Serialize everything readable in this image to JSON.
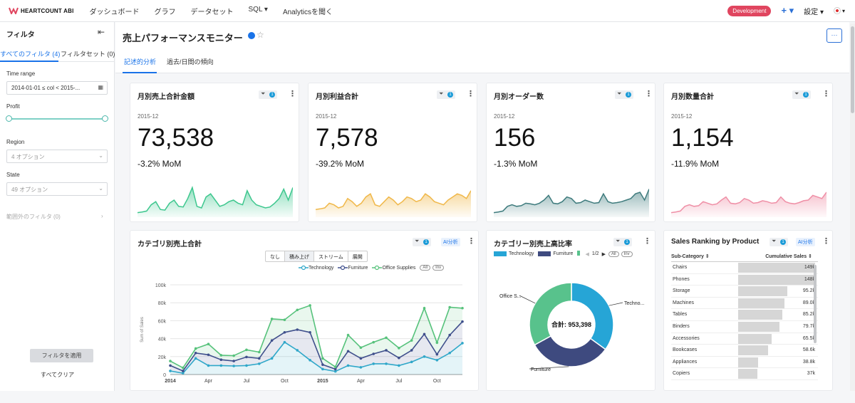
{
  "app": {
    "brand": "HEARTCOUNT ABI"
  },
  "nav": [
    {
      "label": "ダッシュボード"
    },
    {
      "label": "グラフ"
    },
    {
      "label": "データセット"
    },
    {
      "label": "SQL ▾"
    },
    {
      "label": "Analyticsを聞く"
    }
  ],
  "topright": {
    "env_badge": "Development",
    "add_label": "+ ▾",
    "settings_label": "設定 ▾",
    "flag_menu": "▾"
  },
  "sidebar": {
    "title": "フィルタ",
    "tab_all": "すべてのフィルタ (4)",
    "tab_sets": "フィルタセット (0)",
    "filters": [
      {
        "label": "Time range",
        "value": "2014-01-01 ≤ col < 2015-..."
      },
      {
        "label": "Profit",
        "value": ""
      },
      {
        "label": "Region",
        "value": "4 オプション"
      },
      {
        "label": "State",
        "value": "49 オプション"
      }
    ],
    "other_filters": "範囲外のフィルタ (0)",
    "apply": "フィルタを適用",
    "clear": "すべてクリア"
  },
  "page": {
    "title": "売上パフォーマンスモニター",
    "tabs": [
      {
        "label": "記述的分析"
      },
      {
        "label": "過去/日間の傾向"
      }
    ],
    "more": "···"
  },
  "kpis": [
    {
      "title": "月別売上合計金額",
      "date": "2015-12",
      "value": "73,538",
      "mom": "-3.2% MoM",
      "filter_count": "1",
      "color": "#3dc78e",
      "spark": [
        0.1,
        0.12,
        0.15,
        0.35,
        0.45,
        0.2,
        0.18,
        0.4,
        0.5,
        0.3,
        0.28,
        0.55,
        0.9,
        0.3,
        0.25,
        0.6,
        0.7,
        0.5,
        0.3,
        0.35,
        0.45,
        0.5,
        0.4,
        0.35,
        0.8,
        0.5,
        0.35,
        0.3,
        0.25,
        0.28,
        0.4,
        0.55,
        0.85,
        0.5,
        0.9
      ]
    },
    {
      "title": "月別利益合計",
      "date": "2015-12",
      "value": "7,578",
      "mom": "-39.2% MoM",
      "filter_count": "1",
      "color": "#f0b84a",
      "spark": [
        0.2,
        0.22,
        0.25,
        0.4,
        0.35,
        0.25,
        0.3,
        0.55,
        0.45,
        0.3,
        0.4,
        0.6,
        0.7,
        0.35,
        0.3,
        0.45,
        0.6,
        0.5,
        0.35,
        0.45,
        0.6,
        0.55,
        0.45,
        0.5,
        0.7,
        0.6,
        0.45,
        0.4,
        0.35,
        0.5,
        0.6,
        0.7,
        0.65,
        0.55,
        0.8
      ]
    },
    {
      "title": "月別オーダー数",
      "date": "2015-12",
      "value": "156",
      "mom": "-1.3% MoM",
      "filter_count": "1",
      "color": "#3e7b7d",
      "spark": [
        0.1,
        0.12,
        0.15,
        0.3,
        0.35,
        0.3,
        0.32,
        0.4,
        0.38,
        0.35,
        0.4,
        0.5,
        0.65,
        0.4,
        0.38,
        0.45,
        0.6,
        0.55,
        0.4,
        0.42,
        0.5,
        0.45,
        0.4,
        0.42,
        0.7,
        0.45,
        0.4,
        0.42,
        0.45,
        0.5,
        0.55,
        0.7,
        0.75,
        0.5,
        0.85
      ]
    },
    {
      "title": "月別数量合計",
      "date": "2015-12",
      "value": "1,154",
      "mom": "-11.9% MoM",
      "filter_count": "1",
      "color": "#ef8fa6",
      "spark": [
        0.1,
        0.12,
        0.15,
        0.3,
        0.35,
        0.3,
        0.32,
        0.45,
        0.4,
        0.35,
        0.38,
        0.5,
        0.6,
        0.4,
        0.38,
        0.42,
        0.55,
        0.5,
        0.4,
        0.42,
        0.48,
        0.45,
        0.4,
        0.42,
        0.6,
        0.45,
        0.4,
        0.38,
        0.42,
        0.48,
        0.5,
        0.65,
        0.6,
        0.55,
        0.75
      ]
    }
  ],
  "linechart": {
    "title": "カテゴリ別売上合計",
    "filter_count": "1",
    "ai": "AI分析",
    "modes": [
      {
        "label": "なし"
      },
      {
        "label": "積み上げ"
      },
      {
        "label": "ストリーム"
      },
      {
        "label": "展開"
      }
    ],
    "all_pill": "All",
    "inv_pill": "Inv"
  },
  "donut": {
    "title": "カテゴリー別売上高比率",
    "filter_count": "1",
    "page": "1/2",
    "all_pill": "All",
    "inv_pill": "Inv",
    "center_label": "合計: 953,398",
    "slice_labels": [
      "Techno...",
      "Furniture",
      "Office S..."
    ]
  },
  "ranking": {
    "title": "Sales Ranking by Product",
    "filter_count": "1",
    "ai": "AI分析",
    "col1": "Sub-Category ⇕",
    "col2": "Cumulative Sales ⇕",
    "max": 149,
    "rows": [
      {
        "name": "Chairs",
        "label": "149k",
        "value": 149
      },
      {
        "name": "Phones",
        "label": "148k",
        "value": 148
      },
      {
        "name": "Storage",
        "label": "95.2k",
        "value": 95.2
      },
      {
        "name": "Machines",
        "label": "89.0k",
        "value": 89.0
      },
      {
        "name": "Tables",
        "label": "85.2k",
        "value": 85.2
      },
      {
        "name": "Binders",
        "label": "79.7k",
        "value": 79.7
      },
      {
        "name": "Accessories",
        "label": "65.5k",
        "value": 65.5
      },
      {
        "name": "Bookcases",
        "label": "58.6k",
        "value": 58.6
      },
      {
        "name": "Appliances",
        "label": "38.8k",
        "value": 38.8
      },
      {
        "name": "Copiers",
        "label": "37k",
        "value": 37
      }
    ]
  },
  "chart_data": [
    {
      "type": "area",
      "title": "カテゴリ別売上合計",
      "stacked": true,
      "ylabel": "Sum of Sales",
      "ylim": [
        0,
        100000
      ],
      "yticks": [
        "0",
        "20k",
        "40k",
        "60k",
        "80k",
        "100k"
      ],
      "xticks": [
        "2014",
        "Apr",
        "Jul",
        "Oct",
        "2015",
        "Apr",
        "Jul",
        "Oct"
      ],
      "x": [
        "2014-01",
        "2014-02",
        "2014-03",
        "2014-04",
        "2014-05",
        "2014-06",
        "2014-07",
        "2014-08",
        "2014-09",
        "2014-10",
        "2014-11",
        "2014-12",
        "2015-01",
        "2015-02",
        "2015-03",
        "2015-04",
        "2015-05",
        "2015-06",
        "2015-07",
        "2015-08",
        "2015-09",
        "2015-10",
        "2015-11",
        "2015-12"
      ],
      "series": [
        {
          "name": "Technology",
          "color": "#2fa7c9",
          "values": [
            4000,
            1500,
            18000,
            10000,
            10000,
            9500,
            10000,
            12000,
            18000,
            36000,
            27000,
            16000,
            6000,
            3500,
            10000,
            8000,
            12000,
            12000,
            10000,
            14000,
            20000,
            16000,
            24000,
            35000
          ]
        },
        {
          "name": "Furniture",
          "color": "#3f4f8c",
          "values": [
            6000,
            2500,
            6000,
            12000,
            6500,
            5500,
            9500,
            6000,
            20000,
            11000,
            23000,
            31000,
            5000,
            2500,
            16000,
            10000,
            11000,
            15000,
            8500,
            13000,
            25000,
            6500,
            20000,
            24000
          ]
        },
        {
          "name": "Office Supplies",
          "color": "#56c27b",
          "values": [
            5000,
            3500,
            5000,
            12000,
            5000,
            6000,
            8000,
            7000,
            24000,
            14000,
            22000,
            30000,
            7000,
            2500,
            18000,
            12000,
            13000,
            14000,
            11000,
            11000,
            29000,
            13000,
            31000,
            15000
          ]
        }
      ]
    },
    {
      "type": "pie",
      "title": "カテゴリー別売上高比率",
      "total": "953,398",
      "series": [
        {
          "name": "Technology",
          "color": "#26a5d6",
          "value": 35
        },
        {
          "name": "Furniture",
          "color": "#3e4a7f",
          "value": 32
        },
        {
          "name": "Office Supplies",
          "color": "#58c28c",
          "value": 33
        }
      ]
    }
  ]
}
